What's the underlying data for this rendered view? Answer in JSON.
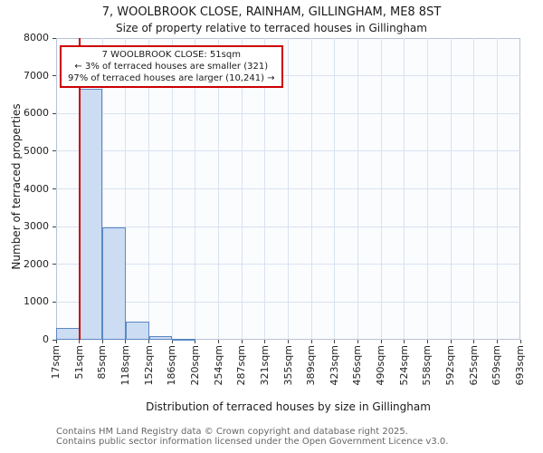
{
  "header": {
    "title": "7, WOOLBROOK CLOSE, RAINHAM, GILLINGHAM, ME8 8ST",
    "subtitle": "Size of property relative to terraced houses in Gillingham"
  },
  "chart_data": {
    "type": "bar",
    "title": "7, WOOLBROOK CLOSE, RAINHAM, GILLINGHAM, ME8 8ST",
    "subtitle": "Size of property relative to terraced houses in Gillingham",
    "xlabel": "Distribution of terraced houses by size in Gillingham",
    "ylabel": "Number of terraced properties",
    "ylim": [
      0,
      8000
    ],
    "yticks": [
      0,
      1000,
      2000,
      3000,
      4000,
      5000,
      6000,
      7000,
      8000
    ],
    "bin_edges_sqm": [
      17,
      51,
      85,
      118,
      152,
      186,
      220,
      254,
      287,
      321,
      355,
      389,
      423,
      456,
      490,
      524,
      558,
      592,
      625,
      659,
      693
    ],
    "x_tick_labels": [
      "17sqm",
      "51sqm",
      "85sqm",
      "118sqm",
      "152sqm",
      "186sqm",
      "220sqm",
      "254sqm",
      "287sqm",
      "321sqm",
      "355sqm",
      "389sqm",
      "423sqm",
      "456sqm",
      "490sqm",
      "524sqm",
      "558sqm",
      "592sqm",
      "625sqm",
      "659sqm",
      "693sqm"
    ],
    "values": [
      320,
      6650,
      2980,
      490,
      100,
      35,
      0,
      0,
      0,
      0,
      0,
      0,
      0,
      0,
      0,
      0,
      0,
      0,
      0,
      0
    ],
    "grid": true,
    "plot_bg": "#fbfcfe",
    "grid_color": "#d8e2f0",
    "bar_fill": "#ccdcf3",
    "bar_border": "#5b87c3",
    "marker": {
      "value_sqm": 51,
      "color": "#cc0000"
    },
    "annotation": {
      "lines": [
        "7 WOOLBROOK CLOSE: 51sqm",
        "← 3% of terraced houses are smaller (321)",
        "97% of terraced houses are larger (10,241) →"
      ]
    }
  },
  "footer": {
    "line1": "Contains HM Land Registry data © Crown copyright and database right 2025.",
    "line2": "Contains public sector information licensed under the Open Government Licence v3.0."
  }
}
